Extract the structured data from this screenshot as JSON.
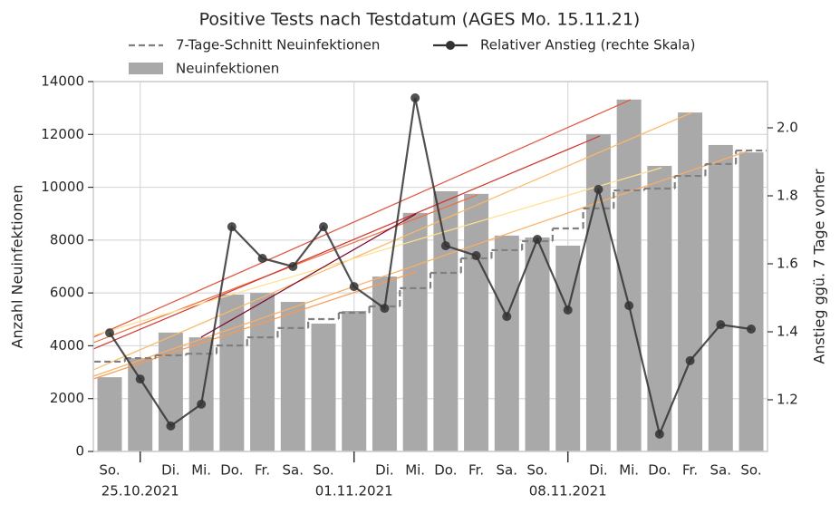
{
  "chart_data": {
    "type": "bar",
    "title": "Positive Tests nach Testdatum (AGES Mo. 15.11.21)",
    "y_label": "Anzahl Neuinfektionen",
    "y2_label": "Anstieg ggü. 7 Tage vorher",
    "categories": [
      "So.",
      "25.10.2021",
      "Di.",
      "Mi.",
      "Do.",
      "Fr.",
      "Sa.",
      "So.",
      "01.11.2021",
      "Di.",
      "Mi.",
      "Do.",
      "Fr.",
      "Sa.",
      "So.",
      "08.11.2021",
      "Di.",
      "Mi.",
      "Do.",
      "Fr.",
      "Sa.",
      "So."
    ],
    "series": [
      {
        "name": "Neuinfektionen",
        "type": "bar",
        "color": "#a9a9a9",
        "values": [
          2810,
          3530,
          4500,
          4320,
          5940,
          6000,
          5660,
          4840,
          5320,
          6620,
          9030,
          9850,
          9750,
          8170,
          8100,
          7790,
          12010,
          13320,
          10810,
          12830,
          11600,
          11320
        ]
      },
      {
        "name": "7-Tage-Schnitt Neuinfektionen",
        "type": "step",
        "color": "#808080",
        "values": [
          3400,
          3530,
          3640,
          3700,
          4010,
          4320,
          4670,
          5010,
          5250,
          5490,
          6180,
          6760,
          7310,
          7620,
          7960,
          8440,
          9200,
          9880,
          9950,
          10430,
          10880,
          11390
        ]
      },
      {
        "name": "Relativer Anstieg (rechte Skala)",
        "type": "line",
        "axis": "y2",
        "color": "#333333",
        "values": [
          1.397,
          1.261,
          1.123,
          1.187,
          1.709,
          1.616,
          1.592,
          1.709,
          1.533,
          1.469,
          2.088,
          1.653,
          1.624,
          1.445,
          1.672,
          1.464,
          1.819,
          1.477,
          1.099,
          1.315,
          1.421,
          1.408
        ]
      }
    ],
    "ylim": [
      0,
      14000
    ],
    "yticks": [
      0,
      2000,
      4000,
      6000,
      8000,
      10000,
      12000,
      14000
    ],
    "y2lim": [
      1.048,
      2.136
    ],
    "y2ticks": [
      1.2,
      1.4,
      1.6,
      1.8,
      {
        "value": 2,
        "label": "2.0"
      }
    ],
    "grid": true
  }
}
